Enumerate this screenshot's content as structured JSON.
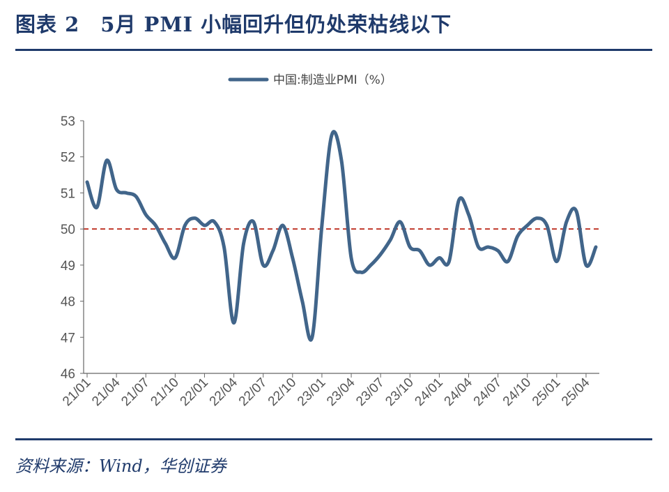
{
  "header": {
    "title": "图表 2　5月 PMI 小幅回升但仍处荣枯线以下"
  },
  "footer": {
    "source": "资料来源：Wind，华创证券"
  },
  "colors": {
    "brand": "#1f3a6b",
    "series": "#41658a",
    "reference": "#c0392b",
    "axis": "#666666"
  },
  "chart_data": {
    "type": "line",
    "title": "",
    "xlabel": "",
    "ylabel": "",
    "ylim": [
      46,
      53
    ],
    "yticks": [
      46,
      47,
      48,
      49,
      50,
      51,
      52,
      53
    ],
    "xtick_labels": [
      "21/01",
      "21/04",
      "21/07",
      "21/10",
      "22/01",
      "22/04",
      "22/07",
      "22/10",
      "23/01",
      "23/04",
      "23/07",
      "23/10",
      "24/01",
      "24/04",
      "24/07",
      "24/10",
      "25/01",
      "25/04"
    ],
    "legend": "top-center",
    "reference_line": {
      "y": 50,
      "style": "dashed"
    },
    "x": [
      "21/01",
      "21/02",
      "21/03",
      "21/04",
      "21/05",
      "21/06",
      "21/07",
      "21/08",
      "21/09",
      "21/10",
      "21/11",
      "21/12",
      "22/01",
      "22/02",
      "22/03",
      "22/04",
      "22/05",
      "22/06",
      "22/07",
      "22/08",
      "22/09",
      "22/10",
      "22/11",
      "22/12",
      "23/01",
      "23/02",
      "23/03",
      "23/04",
      "23/05",
      "23/06",
      "23/07",
      "23/08",
      "23/09",
      "23/10",
      "23/11",
      "23/12",
      "24/01",
      "24/02",
      "24/03",
      "24/04",
      "24/05",
      "24/06",
      "24/07",
      "24/08",
      "24/09",
      "24/10",
      "24/11",
      "24/12",
      "25/01",
      "25/02",
      "25/03",
      "25/04",
      "25/05"
    ],
    "series": [
      {
        "name": "中国:制造业PMI（%）",
        "values": [
          51.3,
          50.6,
          51.9,
          51.1,
          51.0,
          50.9,
          50.4,
          50.1,
          49.6,
          49.2,
          50.1,
          50.3,
          50.1,
          50.2,
          49.5,
          47.4,
          49.6,
          50.2,
          49.0,
          49.4,
          50.1,
          49.2,
          48.0,
          47.0,
          50.1,
          52.6,
          51.9,
          49.2,
          48.8,
          49.0,
          49.3,
          49.7,
          50.2,
          49.5,
          49.4,
          49.0,
          49.2,
          49.1,
          50.8,
          50.4,
          49.5,
          49.5,
          49.4,
          49.1,
          49.8,
          50.1,
          50.3,
          50.1,
          49.1,
          50.2,
          50.5,
          49.0,
          49.5
        ]
      }
    ]
  }
}
